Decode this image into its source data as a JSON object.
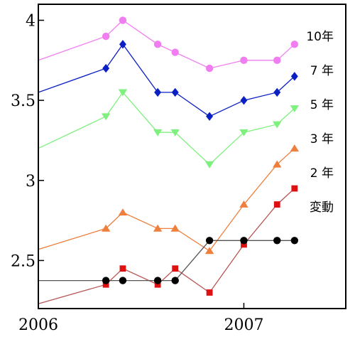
{
  "chart_data": {
    "type": "line",
    "xlim": [
      "2006-01-01",
      "2007-07-01"
    ],
    "ylim": [
      2.2,
      4.1
    ],
    "x_ticks": [
      {
        "date": "2006-01-01",
        "label": "2006"
      },
      {
        "date": "2007-01-01",
        "label": "2007"
      }
    ],
    "y_ticks": [
      {
        "value": 2.5,
        "label": "2.5"
      },
      {
        "value": 3.0,
        "label": "3"
      },
      {
        "value": 3.5,
        "label": "3.5"
      },
      {
        "value": 4.0,
        "label": "4"
      }
    ],
    "grid": false,
    "series": [
      {
        "name": "10年",
        "color": "#f07ef0",
        "marker": "circle",
        "points": [
          {
            "date": "2006-01-01",
            "value": 3.75
          },
          {
            "date": "2006-05-01",
            "value": 3.9
          },
          {
            "date": "2006-05-31",
            "value": 4.0
          },
          {
            "date": "2006-08-01",
            "value": 3.85
          },
          {
            "date": "2006-09-01",
            "value": 3.8
          },
          {
            "date": "2006-11-01",
            "value": 3.7
          },
          {
            "date": "2007-01-01",
            "value": 3.75
          },
          {
            "date": "2007-03-01",
            "value": 3.75
          },
          {
            "date": "2007-04-01",
            "value": 3.85
          }
        ]
      },
      {
        "name": "7 年",
        "color": "#0a1fc4",
        "marker": "diamond",
        "points": [
          {
            "date": "2006-01-01",
            "value": 3.55
          },
          {
            "date": "2006-05-01",
            "value": 3.7
          },
          {
            "date": "2006-05-31",
            "value": 3.85
          },
          {
            "date": "2006-08-01",
            "value": 3.55
          },
          {
            "date": "2006-09-01",
            "value": 3.55
          },
          {
            "date": "2006-11-01",
            "value": 3.4
          },
          {
            "date": "2007-01-01",
            "value": 3.5
          },
          {
            "date": "2007-03-01",
            "value": 3.55
          },
          {
            "date": "2007-04-01",
            "value": 3.65
          }
        ]
      },
      {
        "name": "5 年",
        "color": "#7ef07e",
        "marker": "triangle-down",
        "points": [
          {
            "date": "2006-01-01",
            "value": 3.2
          },
          {
            "date": "2006-05-01",
            "value": 3.4
          },
          {
            "date": "2006-05-31",
            "value": 3.55
          },
          {
            "date": "2006-08-01",
            "value": 3.3
          },
          {
            "date": "2006-09-01",
            "value": 3.3
          },
          {
            "date": "2006-11-01",
            "value": 3.1
          },
          {
            "date": "2007-01-01",
            "value": 3.3
          },
          {
            "date": "2007-03-01",
            "value": 3.35
          },
          {
            "date": "2007-04-01",
            "value": 3.45
          }
        ]
      },
      {
        "name": "3 年",
        "color": "#ee7f3c",
        "marker": "triangle-up",
        "points": [
          {
            "date": "2006-01-01",
            "value": 2.57
          },
          {
            "date": "2006-05-01",
            "value": 2.7
          },
          {
            "date": "2006-05-31",
            "value": 2.8
          },
          {
            "date": "2006-08-01",
            "value": 2.7
          },
          {
            "date": "2006-09-01",
            "value": 2.7
          },
          {
            "date": "2006-11-01",
            "value": 2.56
          },
          {
            "date": "2007-01-01",
            "value": 2.85
          },
          {
            "date": "2007-03-01",
            "value": 3.1
          },
          {
            "date": "2007-04-01",
            "value": 3.2
          }
        ]
      },
      {
        "name": "2 年",
        "color": "#dd1111",
        "line_color": "#b85555",
        "marker": "square",
        "points": [
          {
            "date": "2006-01-01",
            "value": 2.23
          },
          {
            "date": "2006-05-01",
            "value": 2.35
          },
          {
            "date": "2006-05-31",
            "value": 2.45
          },
          {
            "date": "2006-08-01",
            "value": 2.35
          },
          {
            "date": "2006-09-01",
            "value": 2.45
          },
          {
            "date": "2006-11-01",
            "value": 2.3
          },
          {
            "date": "2007-01-01",
            "value": 2.6
          },
          {
            "date": "2007-03-01",
            "value": 2.85
          },
          {
            "date": "2007-04-01",
            "value": 2.95
          }
        ]
      },
      {
        "name": "変動",
        "color": "#000000",
        "line_color": "#555555",
        "marker": "circle",
        "points": [
          {
            "date": "2006-01-01",
            "value": 2.375
          },
          {
            "date": "2006-05-01",
            "value": 2.375
          },
          {
            "date": "2006-05-31",
            "value": 2.375
          },
          {
            "date": "2006-08-01",
            "value": 2.375
          },
          {
            "date": "2006-09-01",
            "value": 2.375
          },
          {
            "date": "2006-11-01",
            "value": 2.625
          },
          {
            "date": "2007-01-01",
            "value": 2.625
          },
          {
            "date": "2007-03-01",
            "value": 2.625
          },
          {
            "date": "2007-04-01",
            "value": 2.625
          }
        ]
      }
    ]
  }
}
